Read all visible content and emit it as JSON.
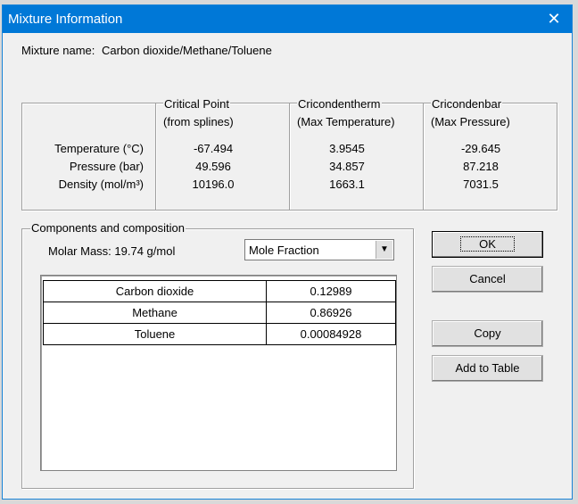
{
  "window": {
    "title": "Mixture Information"
  },
  "mixture": {
    "label": "Mixture name:",
    "name": "Carbon dioxide/Methane/Toluene"
  },
  "properties": {
    "columns": [
      {
        "title": "Critical Point",
        "subtitle": "(from splines)"
      },
      {
        "title": "Cricondentherm",
        "subtitle": "(Max Temperature)"
      },
      {
        "title": "Cricondenbar",
        "subtitle": "(Max Pressure)"
      }
    ],
    "rows": [
      {
        "label": "Temperature (°C)",
        "values": [
          "-67.494",
          "3.9545",
          "-29.645"
        ]
      },
      {
        "label": "Pressure (bar)",
        "values": [
          "49.596",
          "34.857",
          "87.218"
        ]
      },
      {
        "label": "Density (mol/m³)",
        "values": [
          "10196.0",
          "1663.1",
          "7031.5"
        ]
      }
    ]
  },
  "components": {
    "title": "Components and composition",
    "molar_mass": "Molar Mass:  19.74 g/mol",
    "basis": "Mole Fraction",
    "table": {
      "rows": [
        [
          "Carbon dioxide",
          "0.12989"
        ],
        [
          "Methane",
          "0.86926"
        ],
        [
          "Toluene",
          "0.00084928"
        ]
      ]
    }
  },
  "buttons": [
    "OK",
    "Cancel",
    "Copy",
    "Add to Table"
  ]
}
